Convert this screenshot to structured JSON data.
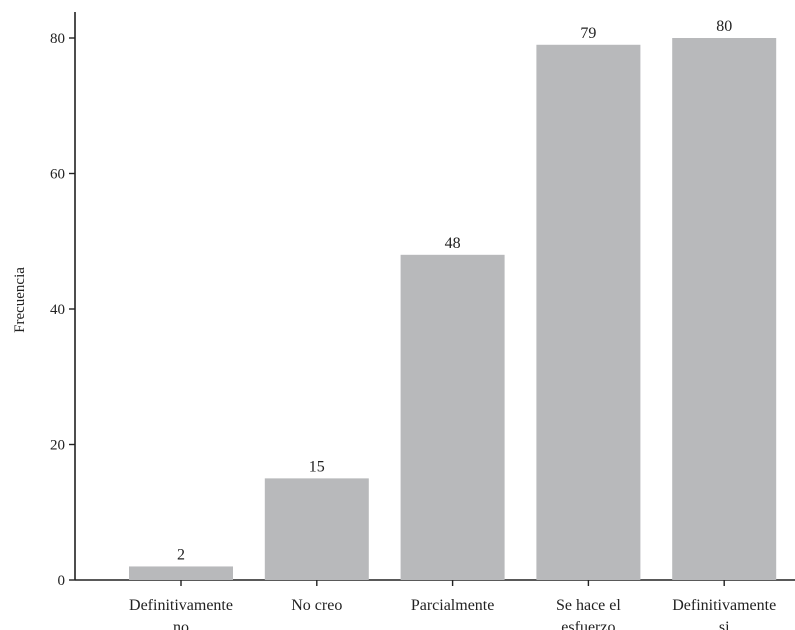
{
  "chart_data": {
    "type": "bar",
    "categories": [
      [
        "Definitivamente",
        "no"
      ],
      [
        "No creo"
      ],
      [
        "Parcialmente"
      ],
      [
        "Se hace el",
        "esfuerzo"
      ],
      [
        "Definitivamente",
        "si"
      ]
    ],
    "values": [
      2,
      15,
      48,
      79,
      80
    ],
    "data_labels": [
      "2",
      "15",
      "48",
      "79",
      "80"
    ],
    "ylabel": "Frecuencia",
    "xlabel": "",
    "title": "",
    "ylim": [
      0,
      80
    ],
    "yticks": [
      0,
      20,
      40,
      60,
      80
    ],
    "ytick_labels": [
      "0",
      "20",
      "40",
      "60",
      "80"
    ],
    "grid": false,
    "bar_color": "#b8b9bb",
    "axis_color": "#222222"
  }
}
